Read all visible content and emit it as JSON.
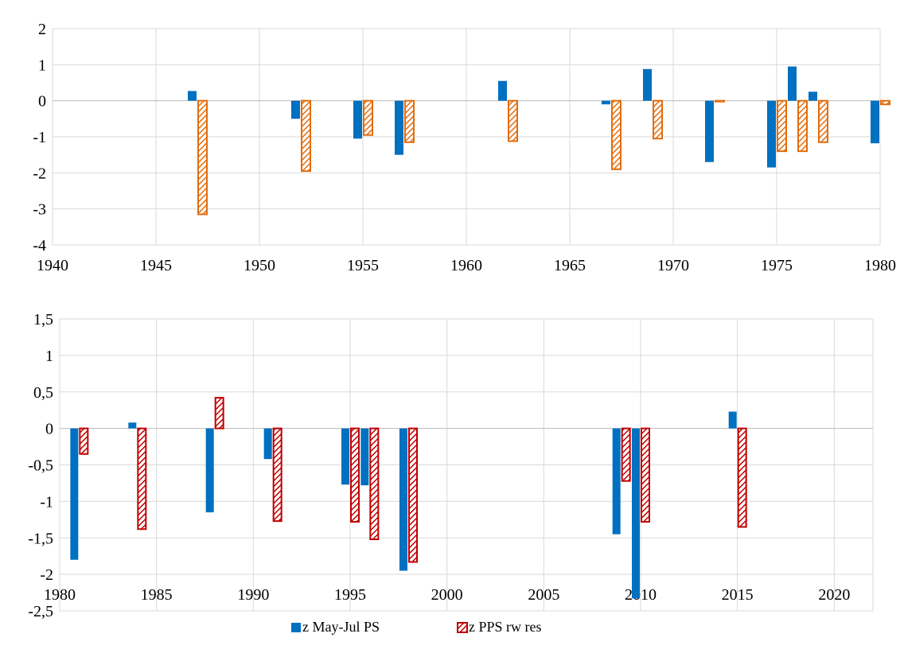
{
  "chart_data": [
    {
      "type": "bar",
      "title": "",
      "xlabel": "",
      "ylabel": "",
      "xlim": [
        1940,
        1980
      ],
      "ylim": [
        -4,
        2
      ],
      "x_ticks": [
        1940,
        1945,
        1950,
        1955,
        1960,
        1965,
        1970,
        1975,
        1980
      ],
      "y_ticks": [
        2,
        1,
        0,
        -1,
        -2,
        -3,
        -4
      ],
      "y_tick_labels": [
        "2",
        "1",
        "0",
        "-1",
        "-2",
        "-3",
        "-4"
      ],
      "grid": true,
      "series": [
        {
          "name": "z May-Jul PS",
          "color": "#0070C0",
          "pattern": "solid",
          "points": [
            {
              "x": 1947,
              "y": 0.27
            },
            {
              "x": 1952,
              "y": -0.5
            },
            {
              "x": 1955,
              "y": -1.05
            },
            {
              "x": 1957,
              "y": -1.5
            },
            {
              "x": 1962,
              "y": 0.55
            },
            {
              "x": 1967,
              "y": -0.1
            },
            {
              "x": 1969,
              "y": 0.88
            },
            {
              "x": 1972,
              "y": -1.7
            },
            {
              "x": 1975,
              "y": -1.85
            },
            {
              "x": 1976,
              "y": 0.95
            },
            {
              "x": 1977,
              "y": 0.25
            },
            {
              "x": 1980,
              "y": -1.18
            }
          ]
        },
        {
          "name": "z PPS rw res",
          "color": "#E46C0A",
          "pattern": "hatched",
          "points": [
            {
              "x": 1947,
              "y": -3.15
            },
            {
              "x": 1952,
              "y": -1.95
            },
            {
              "x": 1955,
              "y": -0.95
            },
            {
              "x": 1957,
              "y": -1.15
            },
            {
              "x": 1962,
              "y": -1.12
            },
            {
              "x": 1967,
              "y": -1.9
            },
            {
              "x": 1969,
              "y": -1.05
            },
            {
              "x": 1972,
              "y": -0.02
            },
            {
              "x": 1975,
              "y": -1.4
            },
            {
              "x": 1976,
              "y": -1.4
            },
            {
              "x": 1977,
              "y": -1.15
            },
            {
              "x": 1980,
              "y": -0.1
            }
          ]
        }
      ]
    },
    {
      "type": "bar",
      "title": "",
      "xlabel": "",
      "ylabel": "",
      "xlim": [
        1980,
        2022
      ],
      "ylim": [
        -2.5,
        1.5
      ],
      "x_ticks": [
        1980,
        1985,
        1990,
        1995,
        2000,
        2005,
        2010,
        2015,
        2020
      ],
      "y_ticks": [
        1.5,
        1,
        0.5,
        0,
        -0.5,
        -1,
        -1.5,
        -2,
        -2.5
      ],
      "y_tick_labels": [
        "1,5",
        "1",
        "0,5",
        "0",
        "-0,5",
        "-1",
        "-1,5",
        "-2",
        "-2,5"
      ],
      "grid": true,
      "series": [
        {
          "name": "z May-Jul PS",
          "color": "#0070C0",
          "pattern": "solid",
          "points": [
            {
              "x": 1981,
              "y": -1.8
            },
            {
              "x": 1984,
              "y": 0.08
            },
            {
              "x": 1988,
              "y": -1.15
            },
            {
              "x": 1991,
              "y": -0.42
            },
            {
              "x": 1995,
              "y": -0.77
            },
            {
              "x": 1996,
              "y": -0.78
            },
            {
              "x": 1998,
              "y": -1.95
            },
            {
              "x": 2009,
              "y": -1.45
            },
            {
              "x": 2010,
              "y": -2.33
            },
            {
              "x": 2015,
              "y": 0.23
            }
          ]
        },
        {
          "name": "z PPS rw res",
          "color": "#C00000",
          "pattern": "hatched",
          "points": [
            {
              "x": 1981,
              "y": -0.35
            },
            {
              "x": 1984,
              "y": -1.38
            },
            {
              "x": 1988,
              "y": 0.42
            },
            {
              "x": 1991,
              "y": -1.27
            },
            {
              "x": 1995,
              "y": -1.28
            },
            {
              "x": 1996,
              "y": -1.52
            },
            {
              "x": 1998,
              "y": -1.83
            },
            {
              "x": 2009,
              "y": -0.72
            },
            {
              "x": 2010,
              "y": -1.28
            },
            {
              "x": 2015,
              "y": -1.35
            }
          ]
        }
      ]
    }
  ],
  "legend": {
    "placement": "bottom-center",
    "items": [
      {
        "label": "z May-Jul PS",
        "color": "#0070C0",
        "pattern": "solid"
      },
      {
        "label": "z PPS rw res",
        "color": "#C00000",
        "pattern": "hatched"
      }
    ]
  }
}
